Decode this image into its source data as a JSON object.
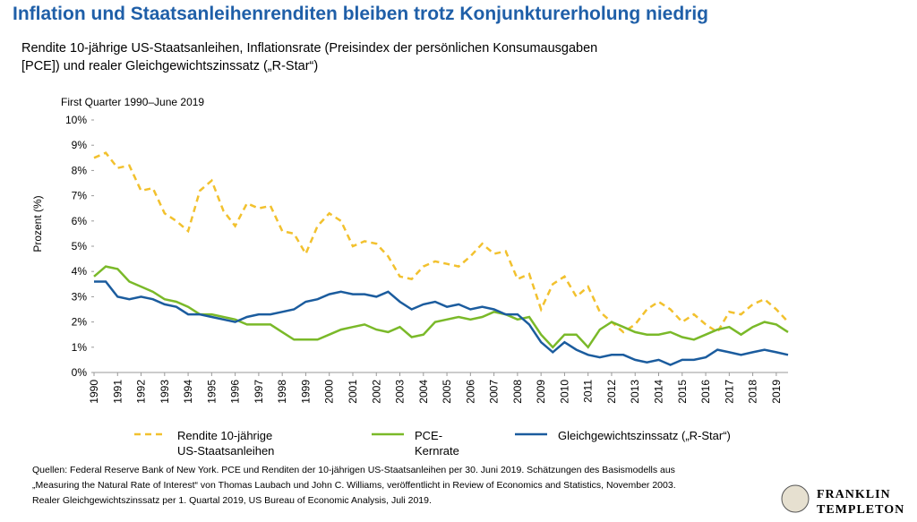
{
  "chart_data": {
    "type": "line",
    "title": "Inflation und Staatsanleihenrenditen bleiben trotz Konjunkturerholung niedrig",
    "subtitle": [
      "Rendite 10-jährige US-Staatsanleihen, Inflationsrate (Preisindex der persönlichen Konsumausgaben",
      "[PCE]) und realer Gleichgewichtszinssatz („R-Star“)"
    ],
    "period": "First Quarter 1990–June 2019",
    "ylabel": "Prozent (%)",
    "x": [
      1990,
      1990.5,
      1991,
      1991.5,
      1992,
      1992.5,
      1993,
      1993.5,
      1994,
      1994.5,
      1995,
      1995.5,
      1996,
      1996.5,
      1997,
      1997.5,
      1998,
      1998.5,
      1999,
      1999.5,
      2000,
      2000.5,
      2001,
      2001.5,
      2002,
      2002.5,
      2003,
      2003.5,
      2004,
      2004.5,
      2005,
      2005.5,
      2006,
      2006.5,
      2007,
      2007.5,
      2008,
      2008.5,
      2009,
      2009.5,
      2010,
      2010.5,
      2011,
      2011.5,
      2012,
      2012.5,
      2013,
      2013.5,
      2014,
      2014.5,
      2015,
      2015.5,
      2016,
      2016.5,
      2017,
      2017.5,
      2018,
      2018.5,
      2019,
      2019.5
    ],
    "series": [
      {
        "name": "Rendite 10-jährige US-Staatsanleihen",
        "color": "#f2c12e",
        "dash": true,
        "values": [
          8.5,
          8.7,
          8.1,
          8.2,
          7.2,
          7.3,
          6.3,
          6.0,
          5.6,
          7.2,
          7.6,
          6.4,
          5.8,
          6.7,
          6.5,
          6.6,
          5.6,
          5.5,
          4.7,
          5.8,
          6.3,
          6.0,
          5.0,
          5.2,
          5.1,
          4.6,
          3.8,
          3.7,
          4.2,
          4.4,
          4.3,
          4.2,
          4.6,
          5.1,
          4.7,
          4.8,
          3.7,
          3.9,
          2.5,
          3.5,
          3.8,
          3.0,
          3.4,
          2.4,
          2.0,
          1.6,
          1.9,
          2.5,
          2.8,
          2.5,
          2.0,
          2.3,
          1.9,
          1.6,
          2.4,
          2.3,
          2.7,
          2.9,
          2.5,
          2.0
        ]
      },
      {
        "name": "PCE-Kernrate",
        "color": "#7ab929",
        "dash": false,
        "values": [
          3.8,
          4.2,
          4.1,
          3.6,
          3.4,
          3.2,
          2.9,
          2.8,
          2.6,
          2.3,
          2.3,
          2.2,
          2.1,
          1.9,
          1.9,
          1.9,
          1.6,
          1.3,
          1.3,
          1.3,
          1.5,
          1.7,
          1.8,
          1.9,
          1.7,
          1.6,
          1.8,
          1.4,
          1.5,
          2.0,
          2.1,
          2.2,
          2.1,
          2.2,
          2.4,
          2.3,
          2.1,
          2.2,
          1.5,
          1.0,
          1.5,
          1.5,
          1.0,
          1.7,
          2.0,
          1.8,
          1.6,
          1.5,
          1.5,
          1.6,
          1.4,
          1.3,
          1.5,
          1.7,
          1.8,
          1.5,
          1.8,
          2.0,
          1.9,
          1.6
        ]
      },
      {
        "name": "Gleichgewichtszinssatz („R-Star“)",
        "color": "#1b5c9e",
        "dash": false,
        "values": [
          3.6,
          3.6,
          3.0,
          2.9,
          3.0,
          2.9,
          2.7,
          2.6,
          2.3,
          2.3,
          2.2,
          2.1,
          2.0,
          2.2,
          2.3,
          2.3,
          2.4,
          2.5,
          2.8,
          2.9,
          3.1,
          3.2,
          3.1,
          3.1,
          3.0,
          3.2,
          2.8,
          2.5,
          2.7,
          2.8,
          2.6,
          2.7,
          2.5,
          2.6,
          2.5,
          2.3,
          2.3,
          1.9,
          1.2,
          0.8,
          1.2,
          0.9,
          0.7,
          0.6,
          0.7,
          0.7,
          0.5,
          0.4,
          0.5,
          0.3,
          0.5,
          0.5,
          0.6,
          0.9,
          0.8,
          0.7,
          0.8,
          0.9,
          0.8,
          0.7
        ]
      }
    ],
    "xlim": [
      1990,
      2019.5
    ],
    "xticks": [
      1990,
      1991,
      1992,
      1993,
      1994,
      1995,
      1996,
      1997,
      1998,
      1999,
      2000,
      2001,
      2002,
      2003,
      2004,
      2005,
      2006,
      2007,
      2008,
      2009,
      2010,
      2011,
      2012,
      2013,
      2014,
      2015,
      2016,
      2017,
      2018,
      2019
    ],
    "ylim": [
      0,
      10
    ],
    "yticks": [
      {
        "value": 0,
        "label": "0%"
      },
      {
        "value": 1,
        "label": "1%"
      },
      {
        "value": 2,
        "label": "2%"
      },
      {
        "value": 3,
        "label": "3%"
      },
      {
        "value": 4,
        "label": "4%"
      },
      {
        "value": 5,
        "label": "5%"
      },
      {
        "value": 6,
        "label": "6%"
      },
      {
        "value": 7,
        "label": "7%"
      },
      {
        "value": 8,
        "label": "8%"
      },
      {
        "value": 9,
        "label": "9%"
      },
      {
        "value": 10,
        "label": "10%"
      }
    ],
    "grid": false,
    "source": [
      "Quellen: Federal Reserve Bank of New York. PCE und Renditen der 10-jährigen US-Staatsanleihen per 30. Juni 2019. Schätzungen des Basismodells aus",
      "„Measuring the Natural Rate of Interest“ von Thomas Laubach und John C. Williams, veröffentlicht in Review of Economics and Statistics, November 2003.",
      "Realer Gleichgewichtszinssatz per 1. Quartal 2019, US Bureau of Economic Analysis, Juli 2019."
    ],
    "logo": [
      "FRANKLIN",
      "TEMPLETON"
    ]
  }
}
